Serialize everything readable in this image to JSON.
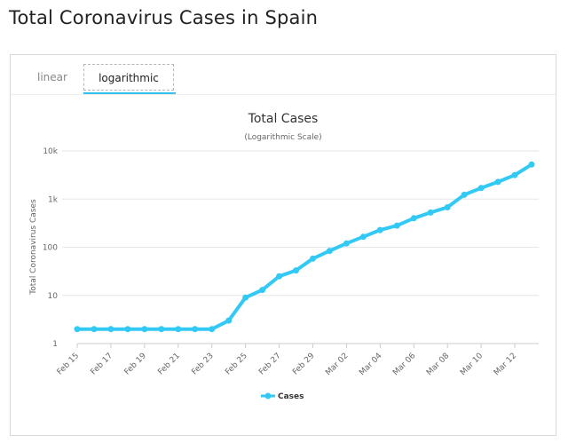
{
  "page": {
    "title": "Total Coronavirus Cases in Spain"
  },
  "tabs": [
    {
      "label": "linear",
      "active": false
    },
    {
      "label": "logarithmic",
      "active": true
    }
  ],
  "colors": {
    "series": "#33c9f5",
    "grid": "#e6e6e6",
    "tab_underline": "#33c2f0"
  },
  "chart_data": {
    "type": "line",
    "title": "Total Cases",
    "subtitle": "(Logarithmic Scale)",
    "xlabel": "",
    "ylabel": "Total Coronavirus Cases",
    "yscale": "log",
    "ylim": [
      1,
      10000
    ],
    "y_ticks": [
      "1",
      "10",
      "100",
      "1k",
      "10k"
    ],
    "x_ticks": [
      "Feb 15",
      "Feb 17",
      "Feb 19",
      "Feb 21",
      "Feb 23",
      "Feb 25",
      "Feb 27",
      "Feb 29",
      "Mar 02",
      "Mar 04",
      "Mar 06",
      "Mar 08",
      "Mar 10",
      "Mar 12"
    ],
    "grid": true,
    "legend": "bottom-center",
    "x": [
      "Feb 15",
      "Feb 16",
      "Feb 17",
      "Feb 18",
      "Feb 19",
      "Feb 20",
      "Feb 21",
      "Feb 22",
      "Feb 23",
      "Feb 24",
      "Feb 25",
      "Feb 26",
      "Feb 27",
      "Feb 28",
      "Feb 29",
      "Mar 01",
      "Mar 02",
      "Mar 03",
      "Mar 04",
      "Mar 05",
      "Mar 06",
      "Mar 07",
      "Mar 08",
      "Mar 09",
      "Mar 10",
      "Mar 11",
      "Mar 12",
      "Mar 13"
    ],
    "series": [
      {
        "name": "Cases",
        "values": [
          2,
          2,
          2,
          2,
          2,
          2,
          2,
          2,
          2,
          3,
          9,
          13,
          25,
          33,
          58,
          84,
          120,
          165,
          228,
          282,
          401,
          525,
          674,
          1231,
          1695,
          2277,
          3146,
          5232
        ]
      }
    ]
  }
}
